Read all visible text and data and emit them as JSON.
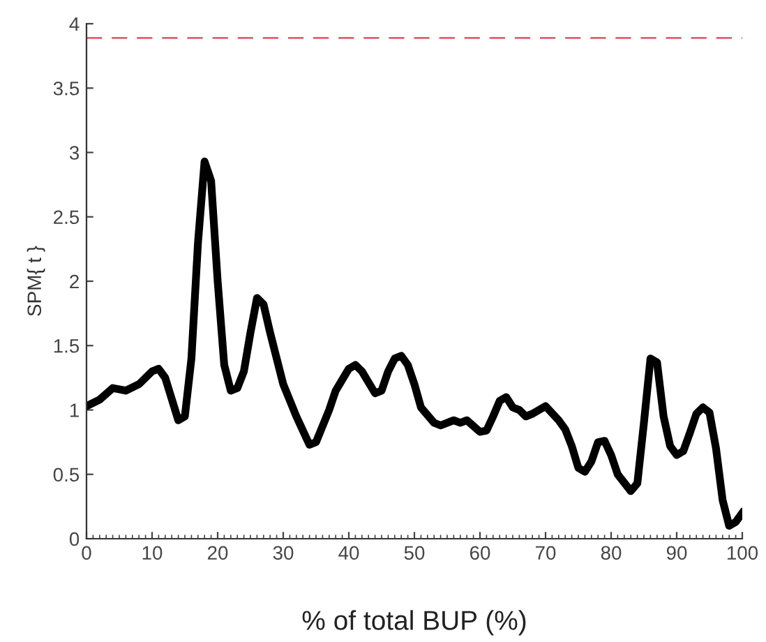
{
  "chart_data": {
    "type": "line",
    "xlabel": "% of total BUP (%)",
    "ylabel": "SPM{ t }",
    "x": [
      0,
      2,
      4,
      6,
      8,
      10,
      11,
      12,
      14,
      15,
      16,
      17,
      18,
      19,
      20,
      21,
      22,
      23,
      24,
      25,
      26,
      27,
      28,
      30,
      32,
      34,
      35,
      37,
      38,
      40,
      41,
      42,
      44,
      45,
      46,
      47,
      48,
      49,
      50,
      51,
      53,
      54,
      56,
      57,
      58,
      60,
      61,
      62,
      63,
      64,
      65,
      66,
      67,
      68,
      70,
      72,
      73,
      74,
      75,
      76,
      77,
      78,
      79,
      80,
      81,
      83,
      84,
      85,
      86,
      87,
      88,
      89,
      90,
      91,
      92,
      93,
      94,
      95,
      96,
      97,
      98,
      99,
      100
    ],
    "series": [
      {
        "color": "#000000",
        "values": [
          1.03,
          1.08,
          1.17,
          1.15,
          1.2,
          1.3,
          1.32,
          1.25,
          0.92,
          0.95,
          1.4,
          2.3,
          2.93,
          2.78,
          2.0,
          1.35,
          1.15,
          1.17,
          1.3,
          1.6,
          1.87,
          1.82,
          1.6,
          1.2,
          0.95,
          0.73,
          0.75,
          1.0,
          1.15,
          1.32,
          1.35,
          1.3,
          1.13,
          1.15,
          1.3,
          1.4,
          1.42,
          1.35,
          1.2,
          1.02,
          0.9,
          0.88,
          0.92,
          0.9,
          0.92,
          0.83,
          0.84,
          0.95,
          1.07,
          1.1,
          1.02,
          1.0,
          0.95,
          0.97,
          1.03,
          0.92,
          0.85,
          0.72,
          0.55,
          0.52,
          0.6,
          0.75,
          0.76,
          0.65,
          0.5,
          0.37,
          0.43,
          0.9,
          1.4,
          1.37,
          0.95,
          0.72,
          0.65,
          0.68,
          0.82,
          0.97,
          1.02,
          0.98,
          0.7,
          0.3,
          0.1,
          0.13,
          0.2
        ]
      }
    ],
    "xlim": [
      0,
      100
    ],
    "xticks": [
      0,
      10,
      20,
      30,
      40,
      50,
      60,
      70,
      80,
      90,
      100
    ],
    "ylim": [
      0,
      4
    ],
    "yticks": [
      0,
      0.5,
      1,
      1.5,
      2,
      2.5,
      3,
      3.5,
      4
    ],
    "ref_lines": [
      {
        "axis": "y",
        "value": 3.89,
        "color": "#e06070",
        "line_style": "dashed"
      }
    ],
    "grid": false,
    "legend": false,
    "marker": "none",
    "line_style": "solid"
  }
}
